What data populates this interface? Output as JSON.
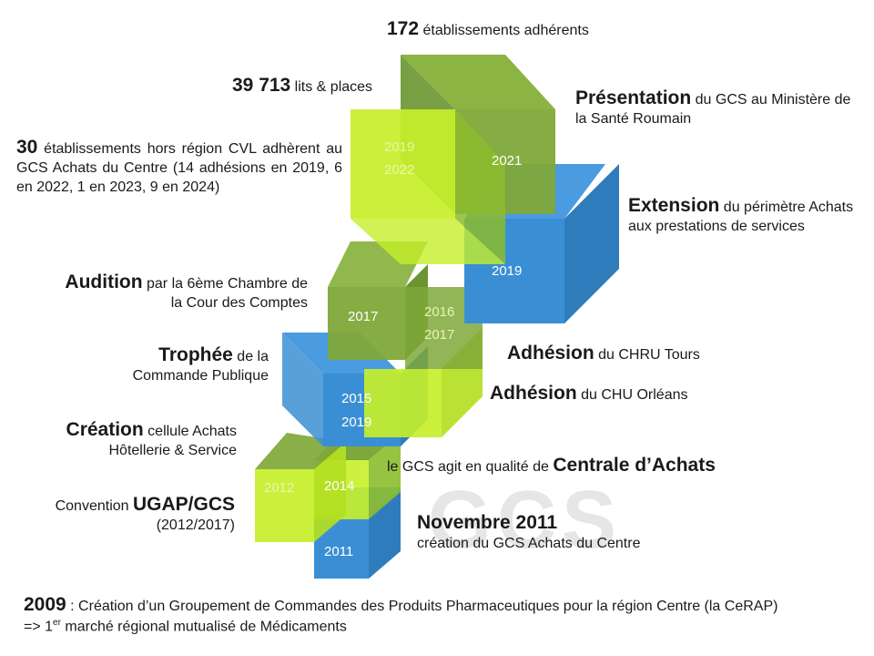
{
  "watermark": "GCS",
  "colors": {
    "blue": "#3a8fd4",
    "lime": "#c6ef2a",
    "olive": "#7fa83a",
    "midgreen": "#6fb91e"
  },
  "cube_labels": {
    "c2011": "2011",
    "c2014": "2014",
    "c2012": "2012",
    "c2015": "2015",
    "c2019a": "2019",
    "c2017": "2017",
    "c2016": "2016",
    "c2017b": "2017",
    "c2019b": "2019",
    "c2021": "2021",
    "c2019c": "2019",
    "c2022": "2022"
  },
  "blocks": {
    "establishments": {
      "bold": "172",
      "rest": " établissements adhérents"
    },
    "beds": {
      "bold": "39 713",
      "rest": " lits & places"
    },
    "outside": {
      "bold": "30",
      "rest": "  établissements hors région CVL adhèrent au GCS Achats du Centre (14 adhésions en 2019, 6 en 2022, 1 en 2023, 9 en 2024)"
    },
    "presentation": {
      "bold": "Présentation",
      "rest": " du GCS au Ministère de la Santé Roumain"
    },
    "extension": {
      "bold": "Extension",
      "rest": " du périmètre Achats aux prestations de services"
    },
    "audition": {
      "bold": "Audition",
      "rest": " par la 6ème Chambre de la Cour des Comptes"
    },
    "trophee": {
      "bold": "Trophée",
      "rest": " de la Commande Publique"
    },
    "chru": {
      "bold": "Adhésion",
      "rest": " du CHRU Tours"
    },
    "chu": {
      "bold": "Adhésion",
      "rest": " du CHU  Orléans"
    },
    "creation": {
      "bold": "Création",
      "rest": " cellule Achats Hôtellerie & Service"
    },
    "centrale": {
      "pre": "le GCS  agit en qualité de ",
      "bold": "Centrale d’Achats"
    },
    "ugap": {
      "pre": "Convention ",
      "bold": "UGAP/GCS",
      "rest": "(2012/2017)"
    },
    "nov2011": {
      "bold": "Novembre 2011",
      "rest": "création du GCS Achats du Centre"
    },
    "y2009": {
      "bold": "2009",
      "rest": " : Création d’un Groupement de Commandes des Produits Pharmaceutiques pour la région Centre  (la CeRAP)"
    },
    "marche": {
      "pre": "=> 1",
      "sup": "er",
      "rest": " marché régional mutualisé de Médicaments"
    }
  }
}
